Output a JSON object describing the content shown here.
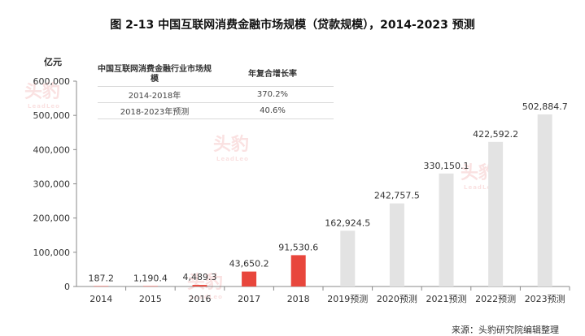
{
  "title": "图 2-13 中国互联网消费金融市场规模（贷款规模），2014-2023 预测",
  "unit_label": "亿元",
  "growth_table": {
    "header_left": "中国互联网消费金融行业市场规模",
    "header_right": "年复合增长率",
    "rows": [
      {
        "period": "2014-2018年",
        "cagr": "370.2%"
      },
      {
        "period": "2018-2023年预测",
        "cagr": "40.6%"
      }
    ]
  },
  "source": "来源：头豹研究院编辑整理",
  "watermark": {
    "text": "头豹",
    "sub": "LeadLeo"
  },
  "colors": {
    "actual": "#e8463c",
    "forecast": "#e3e3e3"
  },
  "chart_data": {
    "type": "bar",
    "title": "图 2-13 中国互联网消费金融市场规模（贷款规模），2014-2023 预测",
    "ylabel": "亿元",
    "categories": [
      "2014",
      "2015",
      "2016",
      "2017",
      "2018",
      "2019预测",
      "2020预测",
      "2021预测",
      "2022预测",
      "2023预测"
    ],
    "values": [
      187.2,
      1190.4,
      4489.3,
      43650.2,
      91530.6,
      162924.5,
      242757.5,
      330150.1,
      422592.2,
      502884.7
    ],
    "value_labels": [
      "187.2",
      "1,190.4",
      "4,489.3",
      "43,650.2",
      "91,530.6",
      "162,924.5",
      "242,757.5",
      "330,150.1",
      "422,592.2",
      "502,884.7"
    ],
    "bar_kind": [
      "actual",
      "actual",
      "actual",
      "actual",
      "actual",
      "forecast",
      "forecast",
      "forecast",
      "forecast",
      "forecast"
    ],
    "ylim": [
      0,
      600000
    ],
    "yticks": [
      0,
      100000,
      200000,
      300000,
      400000,
      500000,
      600000
    ],
    "ytick_labels": [
      "0",
      "100,000",
      "200,000",
      "300,000",
      "400,000",
      "500,000",
      "600,000"
    ],
    "grid": false,
    "legend": "none"
  }
}
